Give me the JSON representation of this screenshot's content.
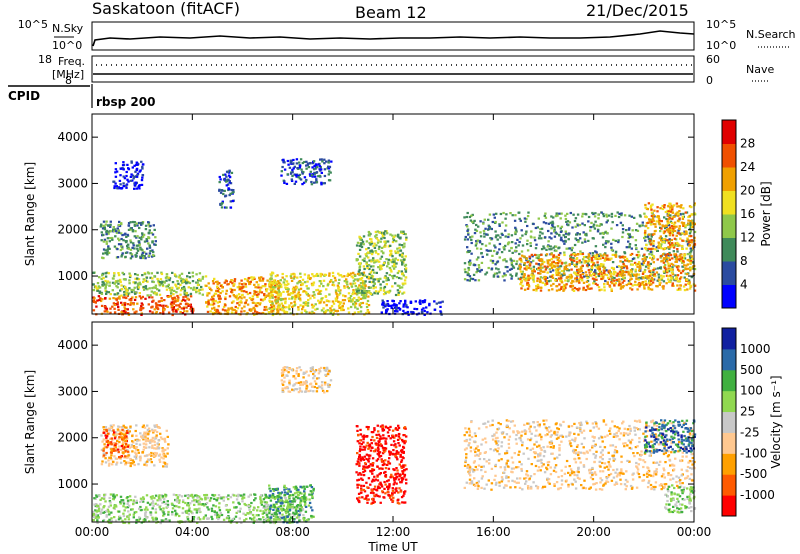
{
  "header": {
    "station": "Saskatoon (fitACF)",
    "beam": "Beam 12",
    "date": "21/Dec/2015"
  },
  "top_panels": {
    "nsky_label": "N.Sky",
    "nsearch_label": "N.Search",
    "nsky_ticks": [
      "10^5",
      "10^0"
    ],
    "nsearch_ticks": [
      "10^5",
      "10^0"
    ],
    "freq_label": "Freq.",
    "freq_unit": "[MHz]",
    "freq_ticks": [
      "18",
      "8"
    ],
    "nave_label": "Nave",
    "nave_ticks": [
      "60",
      "0"
    ],
    "cpid_label": "CPID",
    "cpid_value": "rbsp 200"
  },
  "colors": {
    "power_scale": [
      "#0000ff",
      "#2b4ba0",
      "#3f8a5a",
      "#8fc84a",
      "#f0e020",
      "#f0a000",
      "#f05000",
      "#e00000"
    ],
    "velocity_scale": [
      "#ff0000",
      "#ff5a00",
      "#ffa000",
      "#ffc890",
      "#c8c8c8",
      "#90d850",
      "#40b040",
      "#2a6aa8",
      "#1020a0"
    ]
  },
  "chart_data": [
    {
      "type": "heatmap",
      "panel": "power",
      "ylabel": "Slant Range [km]",
      "yticks": [
        "1000",
        "2000",
        "3000",
        "4000"
      ],
      "ylim": [
        180,
        4500
      ],
      "xlim": [
        0,
        24
      ],
      "colorbar_label": "Power [dB]",
      "colorbar_ticks": [
        "4",
        "8",
        "12",
        "16",
        "20",
        "24",
        "28"
      ],
      "regions": [
        {
          "t0": 0.0,
          "t1": 4.0,
          "r0": 180,
          "r1": 600,
          "level": 7
        },
        {
          "t0": 0.0,
          "t1": 4.5,
          "r0": 600,
          "r1": 1100,
          "level": 4
        },
        {
          "t0": 0.3,
          "t1": 2.5,
          "r0": 1400,
          "r1": 2200,
          "level": 3
        },
        {
          "t0": 0.8,
          "t1": 2.0,
          "r0": 2900,
          "r1": 3500,
          "level": 1
        },
        {
          "t0": 4.5,
          "t1": 7.5,
          "r0": 180,
          "r1": 1000,
          "level": 6
        },
        {
          "t0": 5.0,
          "t1": 5.6,
          "r0": 2500,
          "r1": 3300,
          "level": 2
        },
        {
          "t0": 7.5,
          "t1": 9.5,
          "r0": 3000,
          "r1": 3550,
          "level": 2
        },
        {
          "t0": 7.0,
          "t1": 11.0,
          "r0": 180,
          "r1": 1100,
          "level": 5
        },
        {
          "t0": 10.5,
          "t1": 12.5,
          "r0": 600,
          "r1": 2000,
          "level": 4
        },
        {
          "t0": 11.5,
          "t1": 14.0,
          "r0": 180,
          "r1": 500,
          "level": 1
        },
        {
          "t0": 14.8,
          "t1": 24.0,
          "r0": 900,
          "r1": 2400,
          "level": 3
        },
        {
          "t0": 17.0,
          "t1": 24.0,
          "r0": 700,
          "r1": 1500,
          "level": 6
        },
        {
          "t0": 22.0,
          "t1": 24.0,
          "r0": 1600,
          "r1": 2600,
          "level": 6
        }
      ]
    },
    {
      "type": "heatmap",
      "panel": "velocity",
      "ylabel": "Slant Range [km]",
      "yticks": [
        "1000",
        "2000",
        "3000",
        "4000"
      ],
      "ylim": [
        180,
        4500
      ],
      "xlim": [
        0,
        24
      ],
      "xlabel": "Time UT",
      "xticks": [
        "00:00",
        "04:00",
        "08:00",
        "12:00",
        "16:00",
        "20:00",
        "00:00"
      ],
      "colorbar_label": "Velocity [m s⁻¹]",
      "colorbar_ticks": [
        "1000",
        "500",
        "100",
        "25",
        "-25",
        "-100",
        "-500",
        "-1000"
      ],
      "regions": [
        {
          "t0": 0.0,
          "t1": 8.5,
          "r0": 180,
          "r1": 800,
          "level": 6
        },
        {
          "t0": 0.3,
          "t1": 3.0,
          "r0": 1400,
          "r1": 2300,
          "level": 4
        },
        {
          "t0": 0.4,
          "t1": 1.4,
          "r0": 1600,
          "r1": 2200,
          "level": 2
        },
        {
          "t0": 7.0,
          "t1": 8.8,
          "r0": 180,
          "r1": 1000,
          "level": 7
        },
        {
          "t0": 7.5,
          "t1": 9.5,
          "r0": 3000,
          "r1": 3550,
          "level": 4
        },
        {
          "t0": 10.5,
          "t1": 12.5,
          "r0": 600,
          "r1": 2300,
          "level": 1
        },
        {
          "t0": 14.8,
          "t1": 24.0,
          "r0": 900,
          "r1": 2400,
          "level": 4
        },
        {
          "t0": 22.0,
          "t1": 24.0,
          "r0": 1700,
          "r1": 2400,
          "level": 8
        },
        {
          "t0": 22.8,
          "t1": 24.0,
          "r0": 400,
          "r1": 1000,
          "level": 6
        }
      ]
    }
  ]
}
